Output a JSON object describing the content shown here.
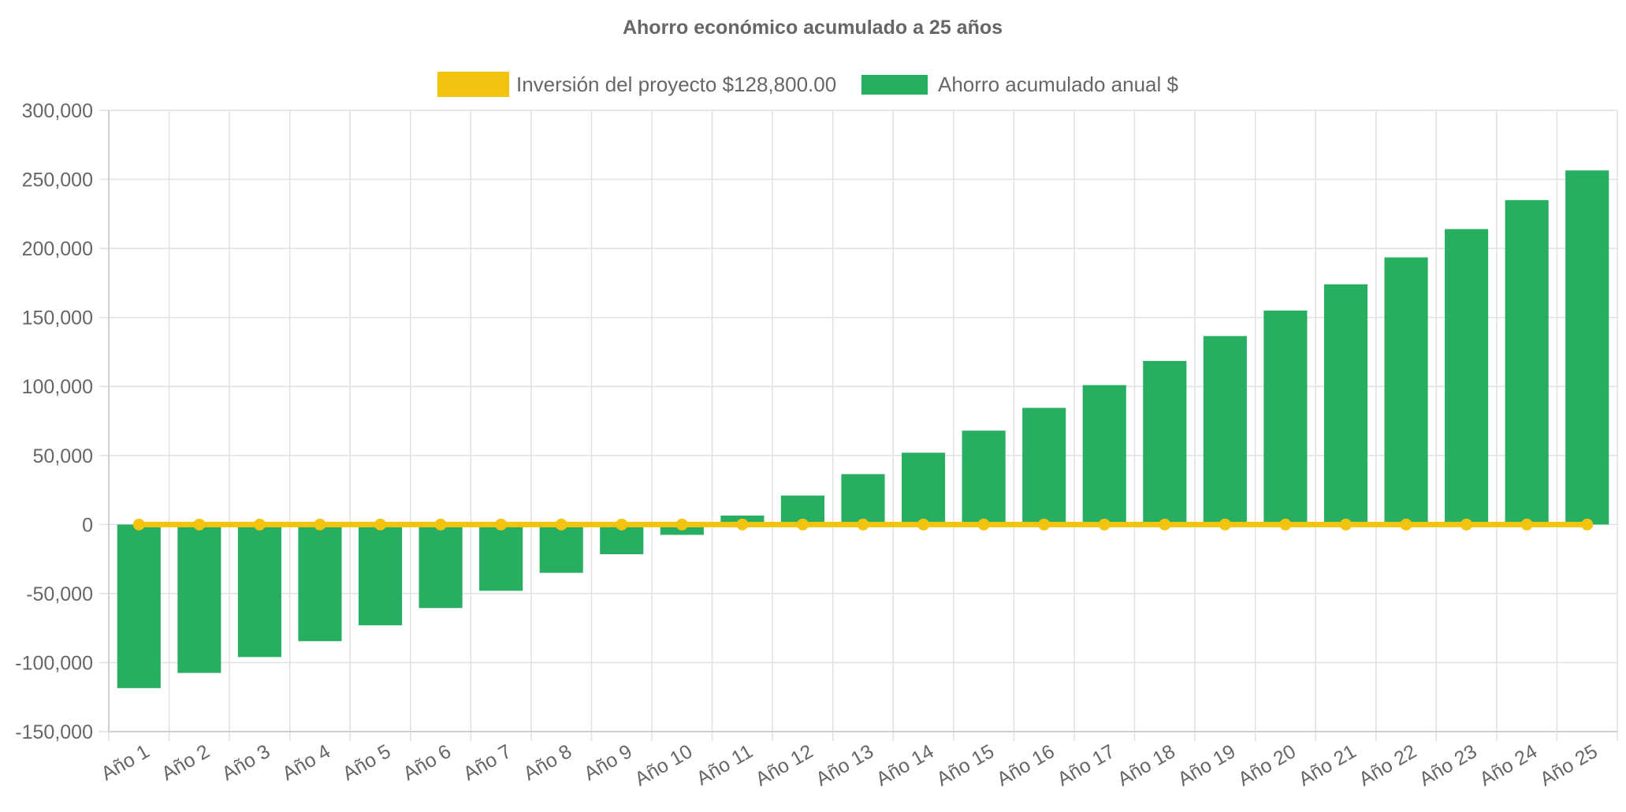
{
  "chart_data": {
    "type": "bar",
    "title": "Ahorro económico acumulado a 25 años",
    "xlabel": "",
    "ylabel": "",
    "ylim": [
      -150000,
      300000
    ],
    "yticks": [
      300000,
      250000,
      200000,
      150000,
      100000,
      50000,
      0,
      -50000,
      -100000,
      -150000
    ],
    "ytick_labels": [
      "300,000",
      "250,000",
      "200,000",
      "150,000",
      "100,000",
      "50,000",
      "0",
      "-50,000",
      "-100,000",
      "-150,000"
    ],
    "grid": true,
    "legend_position": "top",
    "categories": [
      "Año 1",
      "Año 2",
      "Año 3",
      "Año 4",
      "Año 5",
      "Año 6",
      "Año 7",
      "Año 8",
      "Año 9",
      "Año 10",
      "Año 11",
      "Año 12",
      "Año 13",
      "Año 14",
      "Año 15",
      "Año 16",
      "Año 17",
      "Año 18",
      "Año 19",
      "Año 20",
      "Año 21",
      "Año 22",
      "Año 23",
      "Año 24",
      "Año 25"
    ],
    "series": [
      {
        "name": "Inversión del proyecto $128,800.00",
        "type": "line",
        "color": "#f2c40f",
        "values": [
          0,
          0,
          0,
          0,
          0,
          0,
          0,
          0,
          0,
          0,
          0,
          0,
          0,
          0,
          0,
          0,
          0,
          0,
          0,
          0,
          0,
          0,
          0,
          0,
          0
        ]
      },
      {
        "name": "Ahorro acumulado anual $",
        "type": "bar",
        "color": "#27ae60",
        "values": [
          -118500,
          -107500,
          -96000,
          -84500,
          -73000,
          -60500,
          -48000,
          -35000,
          -21500,
          -7500,
          6500,
          21000,
          36500,
          52000,
          68000,
          84500,
          101000,
          118500,
          136500,
          155000,
          174000,
          193500,
          214000,
          235000,
          256500
        ]
      }
    ]
  }
}
